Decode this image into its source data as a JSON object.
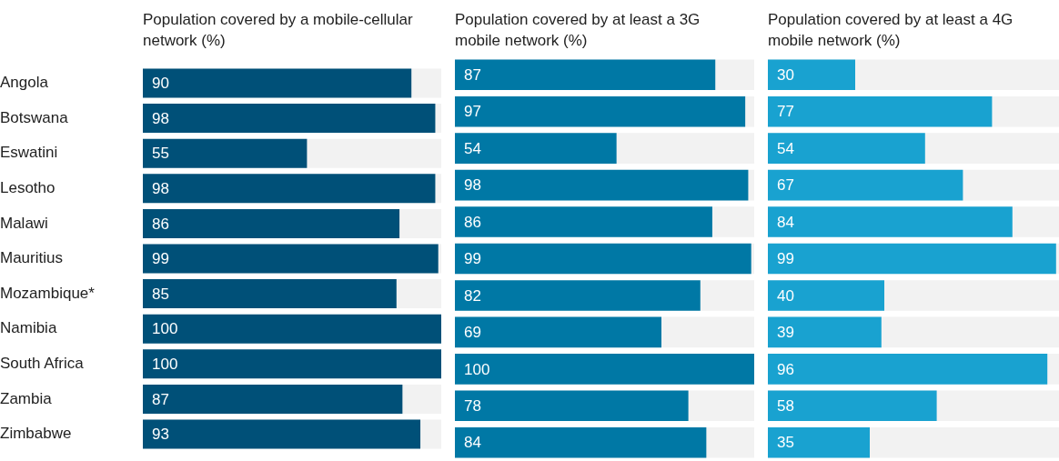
{
  "chart_data": [
    {
      "type": "bar",
      "orientation": "horizontal",
      "title": "Population covered by a mobile-cellular network (%)",
      "categories": [
        "Angola",
        "Botswana",
        "Eswatini",
        "Lesotho",
        "Malawi",
        "Mauritius",
        "Mozambique*",
        "Namibia",
        "South Africa",
        "Zambia",
        "Zimbabwe"
      ],
      "values": [
        90,
        98,
        55,
        98,
        86,
        99,
        85,
        100,
        100,
        87,
        93
      ],
      "color": "#005078",
      "xlim": [
        0,
        100
      ],
      "data_labels": true,
      "tick_labels": "y"
    },
    {
      "type": "bar",
      "orientation": "horizontal",
      "title": "Population covered by at least a 3G mobile network (%)",
      "categories": [
        null,
        null,
        null,
        null,
        null,
        null,
        null,
        null,
        null,
        null,
        null
      ],
      "values": [
        87,
        97,
        54,
        98,
        86,
        99,
        82,
        69,
        100,
        78,
        84
      ],
      "color": "#0078a5",
      "xlim": [
        0,
        100
      ],
      "data_labels": true,
      "tick_labels": false
    },
    {
      "type": "bar",
      "orientation": "horizontal",
      "title": "Population covered by at least a 4G mobile network (%)",
      "categories": [
        null,
        null,
        null,
        null,
        null,
        null,
        null,
        null,
        null,
        null,
        null
      ],
      "values": [
        30,
        77,
        54,
        67,
        84,
        99,
        40,
        39,
        96,
        58,
        35
      ],
      "color": "#19a2d0",
      "xlim": [
        0,
        100
      ],
      "data_labels": true,
      "tick_labels": false
    }
  ]
}
